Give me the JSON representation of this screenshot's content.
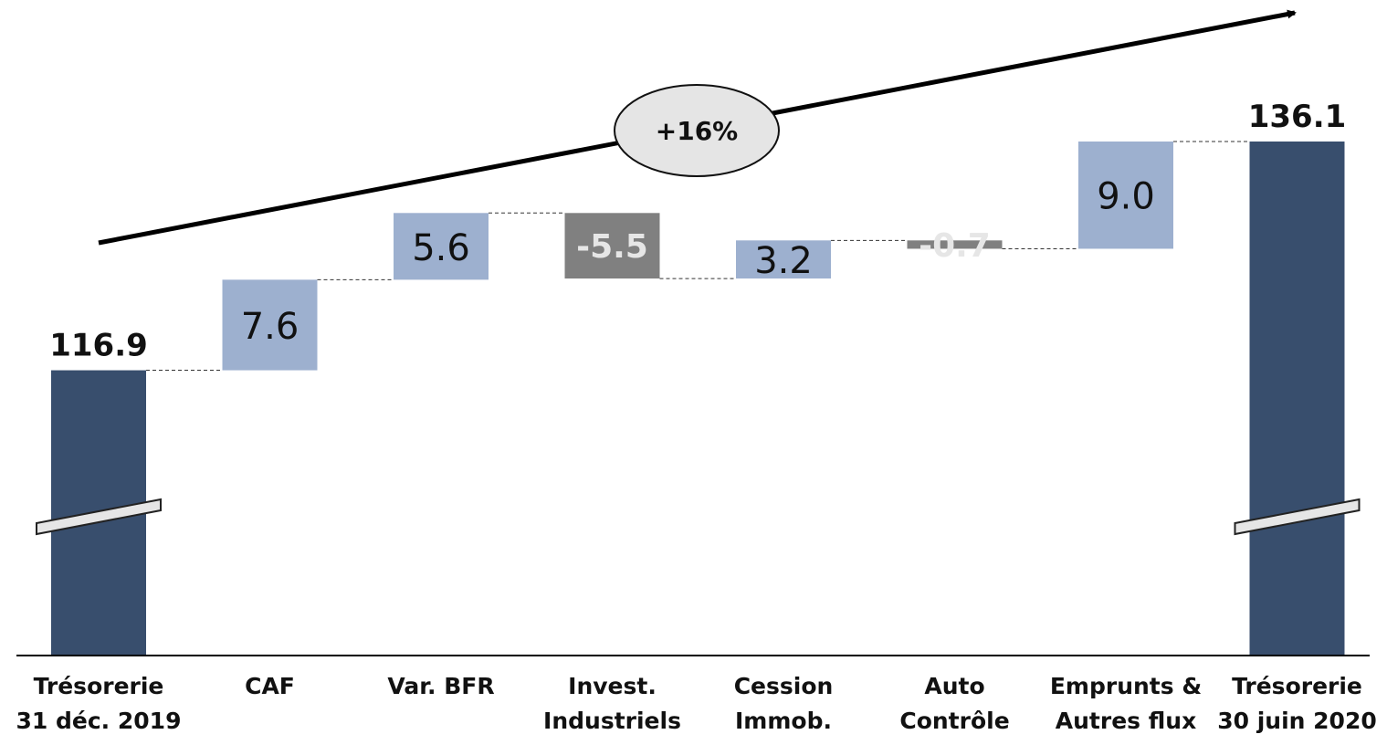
{
  "chart_data": {
    "type": "waterfall",
    "title": "",
    "xlabel": "",
    "ylabel": "",
    "growth_label": "+16%",
    "colors": {
      "total": "#384e6d",
      "increase": "#9db0cf",
      "decrease": "#808080",
      "connector": "#333333",
      "axis": "#000000"
    },
    "items": [
      {
        "label_lines": [
          "Trésorerie",
          "31 déc. 2019"
        ],
        "value": 116.9,
        "display": "116.9",
        "kind": "total"
      },
      {
        "label_lines": [
          "CAF"
        ],
        "value": 7.6,
        "display": "7.6",
        "kind": "increase"
      },
      {
        "label_lines": [
          "Var. BFR"
        ],
        "value": 5.6,
        "display": "5.6",
        "kind": "increase"
      },
      {
        "label_lines": [
          "Invest.",
          "Industriels"
        ],
        "value": -5.5,
        "display": "-5.5",
        "kind": "decrease"
      },
      {
        "label_lines": [
          "Cession",
          "Immob."
        ],
        "value": 3.2,
        "display": "3.2",
        "kind": "increase"
      },
      {
        "label_lines": [
          "Auto",
          "Contrôle"
        ],
        "value": -0.7,
        "display": "-0.7",
        "kind": "decrease"
      },
      {
        "label_lines": [
          "Emprunts &",
          "Autres flux"
        ],
        "value": 9.0,
        "display": "9.0",
        "kind": "increase"
      },
      {
        "label_lines": [
          "Trésorerie",
          "30 juin 2020"
        ],
        "value": 136.1,
        "display": "136.1",
        "kind": "total"
      }
    ]
  }
}
